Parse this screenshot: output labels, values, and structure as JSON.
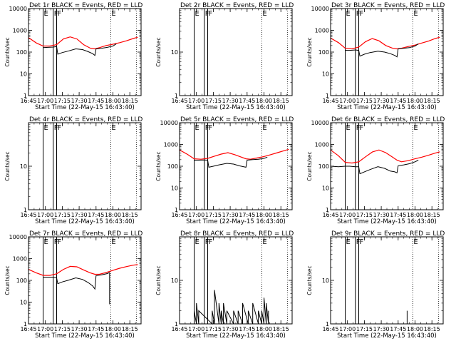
{
  "figure": {
    "time_labels": [
      "16:45",
      "17:00",
      "17:15",
      "17:30",
      "17:45",
      "18:00",
      "18:15"
    ],
    "xlabel": "Start Time (22-May-15 16:43:40)",
    "ylabel": "Counts/sec",
    "colors": {
      "events": "#000000",
      "lld": "#ff0000",
      "axes": "#000000"
    }
  },
  "chart_data": [
    {
      "type": "line",
      "title": "Det 1r BLACK = Events, RED = LLD",
      "log_y": true,
      "ylim": [
        1,
        10000
      ],
      "yticks": [
        "1",
        "10",
        "100",
        "1000",
        "10000"
      ],
      "xlim": [
        "16:45",
        "18:25"
      ],
      "xticks": [
        "16:45",
        "17:00",
        "17:15",
        "17:30",
        "17:45",
        "18:00",
        "18:15"
      ],
      "markers": [
        {
          "time": "16:58",
          "label": "E",
          "style": "solid"
        },
        {
          "time": "17:07",
          "label": "F",
          "style": "solid"
        },
        {
          "time": "17:10",
          "label": "F",
          "style": "solid"
        },
        {
          "time": "17:58",
          "label": "E",
          "style": "dotted"
        },
        {
          "time": "18:21",
          "label": "",
          "style": "dotted"
        }
      ],
      "series": [
        {
          "color": "red",
          "x": [
            "16:45",
            "16:52",
            "16:58",
            "17:04",
            "17:10",
            "17:16",
            "17:22",
            "17:28",
            "17:34",
            "17:40",
            "17:44",
            "17:48",
            "17:54",
            "18:00",
            "18:06",
            "18:12",
            "18:18",
            "18:22"
          ],
          "values": [
            460,
            260,
            190,
            190,
            220,
            400,
            500,
            400,
            220,
            150,
            140,
            160,
            200,
            230,
            270,
            330,
            420,
            480
          ]
        },
        {
          "color": "black",
          "x": [
            "16:58",
            "17:02",
            "17:07",
            "17:10",
            "17:11",
            "17:15",
            "17:20",
            "17:27",
            "17:33",
            "17:38",
            "17:42",
            "17:44",
            "17:45",
            "17:50",
            "17:55",
            "18:00",
            "18:03"
          ],
          "values": [
            160,
            165,
            170,
            180,
            80,
            95,
            110,
            140,
            130,
            105,
            85,
            70,
            140,
            150,
            165,
            190,
            240
          ]
        }
      ]
    },
    {
      "type": "line",
      "title": "Det 2r BLACK = Events, RED = LLD",
      "log_y": true,
      "ylim": [
        1,
        100
      ],
      "yticks": [
        "1",
        "10"
      ],
      "xlim": [
        "16:45",
        "18:25"
      ],
      "xticks": [
        "16:45",
        "17:00",
        "17:15",
        "17:30",
        "17:45",
        "18:00",
        "18:15"
      ],
      "markers": [
        {
          "time": "16:58",
          "label": "E",
          "style": "solid"
        },
        {
          "time": "17:07",
          "label": "F",
          "style": "solid"
        },
        {
          "time": "17:10",
          "label": "F",
          "style": "solid"
        },
        {
          "time": "17:58",
          "label": "E",
          "style": "dotted"
        },
        {
          "time": "18:21",
          "label": "",
          "style": "dotted"
        }
      ],
      "series": []
    },
    {
      "type": "line",
      "title": "Det 3r BLACK = Events, RED = LLD",
      "log_y": true,
      "ylim": [
        1,
        10000
      ],
      "yticks": [
        "1",
        "10",
        "100",
        "1000",
        "10000"
      ],
      "xlim": [
        "16:45",
        "18:25"
      ],
      "xticks": [
        "16:45",
        "17:00",
        "17:15",
        "17:30",
        "17:45",
        "18:00",
        "18:15"
      ],
      "markers": [
        {
          "time": "16:58",
          "label": "E",
          "style": "solid"
        },
        {
          "time": "17:07",
          "label": "F",
          "style": "solid"
        },
        {
          "time": "17:10",
          "label": "F",
          "style": "solid"
        },
        {
          "time": "17:58",
          "label": "E",
          "style": "dotted"
        },
        {
          "time": "18:21",
          "label": "",
          "style": "dotted"
        }
      ],
      "series": [
        {
          "color": "red",
          "x": [
            "16:45",
            "16:52",
            "16:58",
            "17:04",
            "17:10",
            "17:16",
            "17:22",
            "17:28",
            "17:34",
            "17:40",
            "17:44",
            "17:48",
            "17:54",
            "18:00",
            "18:06",
            "18:12",
            "18:18",
            "18:22"
          ],
          "values": [
            440,
            270,
            150,
            140,
            170,
            300,
            420,
            330,
            200,
            150,
            140,
            150,
            180,
            210,
            260,
            320,
            420,
            480
          ]
        },
        {
          "color": "black",
          "x": [
            "16:58",
            "17:02",
            "17:07",
            "17:10",
            "17:11",
            "17:15",
            "17:20",
            "17:27",
            "17:33",
            "17:38",
            "17:42",
            "17:44",
            "17:45",
            "17:50",
            "17:55",
            "18:00",
            "18:03"
          ],
          "values": [
            120,
            120,
            125,
            120,
            65,
            80,
            95,
            110,
            100,
            85,
            70,
            60,
            140,
            150,
            160,
            190,
            240
          ]
        }
      ]
    },
    {
      "type": "line",
      "title": "Det 4r BLACK = Events, RED = LLD",
      "log_y": true,
      "ylim": [
        1,
        100
      ],
      "yticks": [
        "1",
        "10"
      ],
      "xlim": [
        "16:45",
        "18:25"
      ],
      "xticks": [
        "16:45",
        "17:00",
        "17:15",
        "17:30",
        "17:45",
        "18:00",
        "18:15"
      ],
      "markers": [
        {
          "time": "16:58",
          "label": "E",
          "style": "solid"
        },
        {
          "time": "17:07",
          "label": "F",
          "style": "solid"
        },
        {
          "time": "17:10",
          "label": "F",
          "style": "solid"
        },
        {
          "time": "17:58",
          "label": "E",
          "style": "dotted"
        },
        {
          "time": "18:21",
          "label": "",
          "style": "dotted"
        }
      ],
      "series": []
    },
    {
      "type": "line",
      "title": "Det 5r BLACK = Events, RED = LLD",
      "log_y": true,
      "ylim": [
        1,
        10000
      ],
      "yticks": [
        "1",
        "10",
        "100",
        "1000",
        "10000"
      ],
      "xlim": [
        "16:45",
        "18:25"
      ],
      "xticks": [
        "16:45",
        "17:00",
        "17:15",
        "17:30",
        "17:45",
        "18:00",
        "18:15"
      ],
      "markers": [
        {
          "time": "16:58",
          "label": "E",
          "style": "solid"
        },
        {
          "time": "17:07",
          "label": "F",
          "style": "solid"
        },
        {
          "time": "17:10",
          "label": "F",
          "style": "solid"
        },
        {
          "time": "17:58",
          "label": "E",
          "style": "dotted"
        },
        {
          "time": "18:21",
          "label": "",
          "style": "dotted"
        }
      ],
      "series": [
        {
          "color": "red",
          "x": [
            "16:45",
            "16:52",
            "16:58",
            "17:04",
            "17:10",
            "17:16",
            "17:22",
            "17:28",
            "17:34",
            "17:40",
            "17:44",
            "17:48",
            "17:54",
            "18:00",
            "18:06",
            "18:12",
            "18:18",
            "18:22"
          ],
          "values": [
            560,
            350,
            220,
            210,
            230,
            290,
            360,
            420,
            340,
            260,
            220,
            210,
            240,
            280,
            340,
            420,
            520,
            600
          ]
        },
        {
          "color": "black",
          "x": [
            "16:58",
            "17:02",
            "17:07",
            "17:10",
            "17:11",
            "17:15",
            "17:20",
            "17:27",
            "17:33",
            "17:38",
            "17:42",
            "17:44",
            "17:45",
            "17:50",
            "17:55",
            "18:00",
            "18:03"
          ],
          "values": [
            190,
            190,
            195,
            190,
            90,
            100,
            115,
            135,
            125,
            105,
            95,
            90,
            190,
            200,
            210,
            230,
            260
          ]
        }
      ]
    },
    {
      "type": "line",
      "title": "Det 6r BLACK = Events, RED = LLD",
      "log_y": true,
      "ylim": [
        1,
        10000
      ],
      "yticks": [
        "1",
        "10",
        "100",
        "1000",
        "10000"
      ],
      "xlim": [
        "16:45",
        "18:25"
      ],
      "xticks": [
        "16:45",
        "17:00",
        "17:15",
        "17:30",
        "17:45",
        "18:00",
        "18:15"
      ],
      "markers": [
        {
          "time": "16:58",
          "label": "E",
          "style": "solid"
        },
        {
          "time": "17:07",
          "label": "F",
          "style": "solid"
        },
        {
          "time": "17:10",
          "label": "F",
          "style": "solid"
        },
        {
          "time": "17:58",
          "label": "E",
          "style": "dotted"
        },
        {
          "time": "18:21",
          "label": "",
          "style": "dotted"
        }
      ],
      "series": [
        {
          "color": "red",
          "x": [
            "16:45",
            "16:52",
            "16:58",
            "17:04",
            "17:10",
            "17:16",
            "17:22",
            "17:28",
            "17:34",
            "17:40",
            "17:44",
            "17:48",
            "17:54",
            "18:00",
            "18:06",
            "18:12",
            "18:18",
            "18:22"
          ],
          "values": [
            560,
            300,
            150,
            140,
            160,
            270,
            450,
            560,
            420,
            260,
            190,
            160,
            180,
            220,
            260,
            320,
            400,
            460
          ]
        },
        {
          "color": "black",
          "x": [
            "16:45",
            "16:52",
            "16:58",
            "17:02",
            "17:07",
            "17:10",
            "17:11",
            "17:15",
            "17:20",
            "17:27",
            "17:33",
            "17:38",
            "17:42",
            "17:44",
            "17:45",
            "17:50",
            "17:55",
            "18:00",
            "18:03"
          ],
          "values": [
            100,
            95,
            100,
            100,
            95,
            95,
            45,
            55,
            70,
            95,
            80,
            60,
            55,
            50,
            105,
            115,
            130,
            160,
            190
          ]
        }
      ]
    },
    {
      "type": "line",
      "title": "Det 7r BLACK = Events, RED = LLD",
      "log_y": true,
      "ylim": [
        1,
        10000
      ],
      "yticks": [
        "1",
        "10",
        "100",
        "1000",
        "10000"
      ],
      "xlim": [
        "16:45",
        "18:25"
      ],
      "xticks": [
        "16:45",
        "17:00",
        "17:15",
        "17:30",
        "17:45",
        "18:00",
        "18:15"
      ],
      "markers": [
        {
          "time": "16:58",
          "label": "E",
          "style": "solid"
        },
        {
          "time": "17:07",
          "label": "F",
          "style": "solid"
        },
        {
          "time": "17:10",
          "label": "F",
          "style": "solid"
        },
        {
          "time": "17:58",
          "label": "E",
          "style": "dotted"
        },
        {
          "time": "18:21",
          "label": "",
          "style": "dotted"
        }
      ],
      "series": [
        {
          "color": "red",
          "x": [
            "16:45",
            "16:52",
            "16:58",
            "17:04",
            "17:10",
            "17:16",
            "17:22",
            "17:28",
            "17:34",
            "17:40",
            "17:44",
            "17:48",
            "17:54",
            "18:00",
            "18:06",
            "18:12",
            "18:18",
            "18:22"
          ],
          "values": [
            320,
            220,
            170,
            170,
            200,
            320,
            440,
            420,
            300,
            220,
            190,
            190,
            230,
            290,
            360,
            430,
            500,
            530
          ]
        },
        {
          "color": "black",
          "x": [
            "16:58",
            "17:02",
            "17:07",
            "17:10",
            "17:11",
            "17:15",
            "17:20",
            "17:27",
            "17:33",
            "17:38",
            "17:42",
            "17:44",
            "17:45",
            "17:50",
            "17:55",
            "17:57"
          ],
          "values": [
            140,
            140,
            140,
            130,
            70,
            85,
            100,
            130,
            110,
            80,
            55,
            40,
            165,
            180,
            205,
            230
          ]
        },
        {
          "color": "black",
          "x": [
            "17:57",
            "17:57"
          ],
          "values": [
            8,
            230
          ]
        }
      ]
    },
    {
      "type": "line",
      "title": "Det 8r BLACK = Events, RED = LLD",
      "log_y": true,
      "ylim": [
        1,
        100
      ],
      "yticks": [
        "1",
        "10"
      ],
      "xlim": [
        "16:45",
        "18:25"
      ],
      "xticks": [
        "16:45",
        "17:00",
        "17:15",
        "17:30",
        "17:45",
        "18:00",
        "18:15"
      ],
      "markers": [
        {
          "time": "16:58",
          "label": "E",
          "style": "solid"
        },
        {
          "time": "17:07",
          "label": "F",
          "style": "solid"
        },
        {
          "time": "17:10",
          "label": "F",
          "style": "solid"
        },
        {
          "time": "17:58",
          "label": "E",
          "style": "dotted"
        },
        {
          "time": "18:21",
          "label": "",
          "style": "dotted"
        }
      ],
      "series": [
        {
          "color": "black",
          "x": [
            "16:58",
            "16:58",
            "17:00",
            "17:00",
            "17:02",
            "17:02",
            "17:14",
            "17:14",
            "17:16",
            "17:16",
            "17:20",
            "17:20",
            "17:22",
            "17:22",
            "17:24",
            "17:24",
            "17:27",
            "17:27",
            "17:33",
            "17:33",
            "17:37",
            "17:37",
            "17:41",
            "17:41",
            "17:46",
            "17:46",
            "17:50",
            "17:50",
            "17:55",
            "17:55",
            "17:58",
            "17:58",
            "18:00",
            "18:00",
            "18:02",
            "18:02",
            "18:04",
            "18:04"
          ],
          "values": [
            1,
            2,
            1,
            3,
            1,
            2,
            1,
            2,
            1,
            6,
            1,
            3,
            1,
            2,
            1,
            3,
            1,
            2,
            1,
            2,
            1,
            2,
            1,
            3,
            1,
            2,
            1,
            3,
            1,
            2,
            1,
            2,
            1,
            4,
            1,
            3,
            1,
            2
          ]
        }
      ]
    },
    {
      "type": "line",
      "title": "Det 9r BLACK = Events, RED = LLD",
      "log_y": true,
      "ylim": [
        1,
        100
      ],
      "yticks": [
        "1",
        "10"
      ],
      "xlim": [
        "16:45",
        "18:25"
      ],
      "xticks": [
        "16:45",
        "17:00",
        "17:15",
        "17:30",
        "17:45",
        "18:00",
        "18:15"
      ],
      "markers": [
        {
          "time": "16:58",
          "label": "E",
          "style": "solid"
        },
        {
          "time": "17:07",
          "label": "F",
          "style": "solid"
        },
        {
          "time": "17:10",
          "label": "F",
          "style": "solid"
        },
        {
          "time": "17:58",
          "label": "E",
          "style": "dotted"
        },
        {
          "time": "18:21",
          "label": "",
          "style": "dotted"
        }
      ],
      "series": [
        {
          "color": "black",
          "x": [
            "17:53",
            "17:53"
          ],
          "values": [
            1,
            2
          ]
        }
      ]
    }
  ]
}
